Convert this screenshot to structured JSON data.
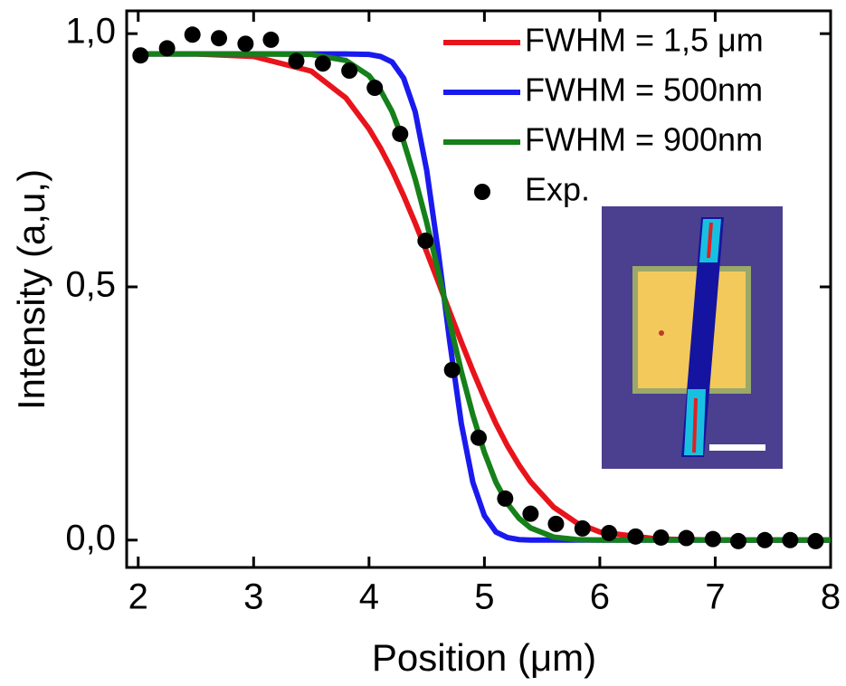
{
  "chart_data": {
    "type": "line",
    "xlabel": "Position (μm)",
    "ylabel": "Intensity (a,u,)",
    "xlim": [
      1.9,
      8
    ],
    "ylim": [
      -0.054,
      1.045
    ],
    "xticks": [
      2,
      3,
      4,
      5,
      6,
      7,
      8
    ],
    "yticks": [
      {
        "value": 0,
        "label": "0,0"
      },
      {
        "value": 0.5,
        "label": "0,5"
      },
      {
        "value": 1,
        "label": "1,0"
      }
    ],
    "legend": "upper right",
    "x": [
      2,
      2.5,
      3,
      3.5,
      3.8,
      4.0,
      4.1,
      4.2,
      4.3,
      4.4,
      4.5,
      4.6,
      4.7,
      4.8,
      4.9,
      5.0,
      5.1,
      5.2,
      5.3,
      5.4,
      5.6,
      5.8,
      6.0,
      6.5,
      7,
      7.5,
      8
    ],
    "series": [
      {
        "name": "FWHM = 1,5 μm",
        "type": "line",
        "color": "#e8141b",
        "values": [
          0.96,
          0.96,
          0.955,
          0.926,
          0.873,
          0.812,
          0.774,
          0.73,
          0.68,
          0.626,
          0.569,
          0.51,
          0.45,
          0.391,
          0.334,
          0.28,
          0.23,
          0.186,
          0.148,
          0.115,
          0.065,
          0.034,
          0.016,
          0.002,
          0,
          0,
          0
        ]
      },
      {
        "name": "FWHM = 500nm",
        "type": "line",
        "color": "#1a1aee",
        "values": [
          0.96,
          0.96,
          0.96,
          0.96,
          0.96,
          0.959,
          0.955,
          0.944,
          0.912,
          0.846,
          0.73,
          0.569,
          0.391,
          0.23,
          0.114,
          0.048,
          0.016,
          0.005,
          0.001,
          0,
          0,
          0,
          0,
          0,
          0,
          0,
          0
        ]
      },
      {
        "name": "FWHM = 900nm",
        "type": "line",
        "color": "#16801a",
        "values": [
          0.96,
          0.96,
          0.96,
          0.959,
          0.947,
          0.917,
          0.888,
          0.846,
          0.787,
          0.713,
          0.627,
          0.53,
          0.43,
          0.333,
          0.247,
          0.173,
          0.114,
          0.072,
          0.043,
          0.024,
          0.006,
          0.001,
          0,
          0,
          0,
          0,
          0
        ]
      },
      {
        "name": "Exp.",
        "type": "scatter",
        "color": "#000000",
        "x": [
          2.02,
          2.25,
          2.47,
          2.7,
          2.93,
          3.15,
          3.37,
          3.6,
          3.83,
          4.05,
          4.27,
          4.49,
          4.72,
          4.95,
          5.18,
          5.4,
          5.62,
          5.85,
          6.08,
          6.31,
          6.53,
          6.75,
          6.98,
          7.2,
          7.43,
          7.65,
          7.87
        ],
        "values": [
          0.957,
          0.971,
          0.998,
          0.991,
          0.98,
          0.988,
          0.946,
          0.941,
          0.927,
          0.893,
          0.802,
          0.591,
          0.336,
          0.202,
          0.082,
          0.052,
          0.032,
          0.023,
          0.014,
          0.007,
          0.005,
          0.004,
          0.002,
          -0.002,
          0,
          0,
          -0.002
        ]
      }
    ]
  }
}
